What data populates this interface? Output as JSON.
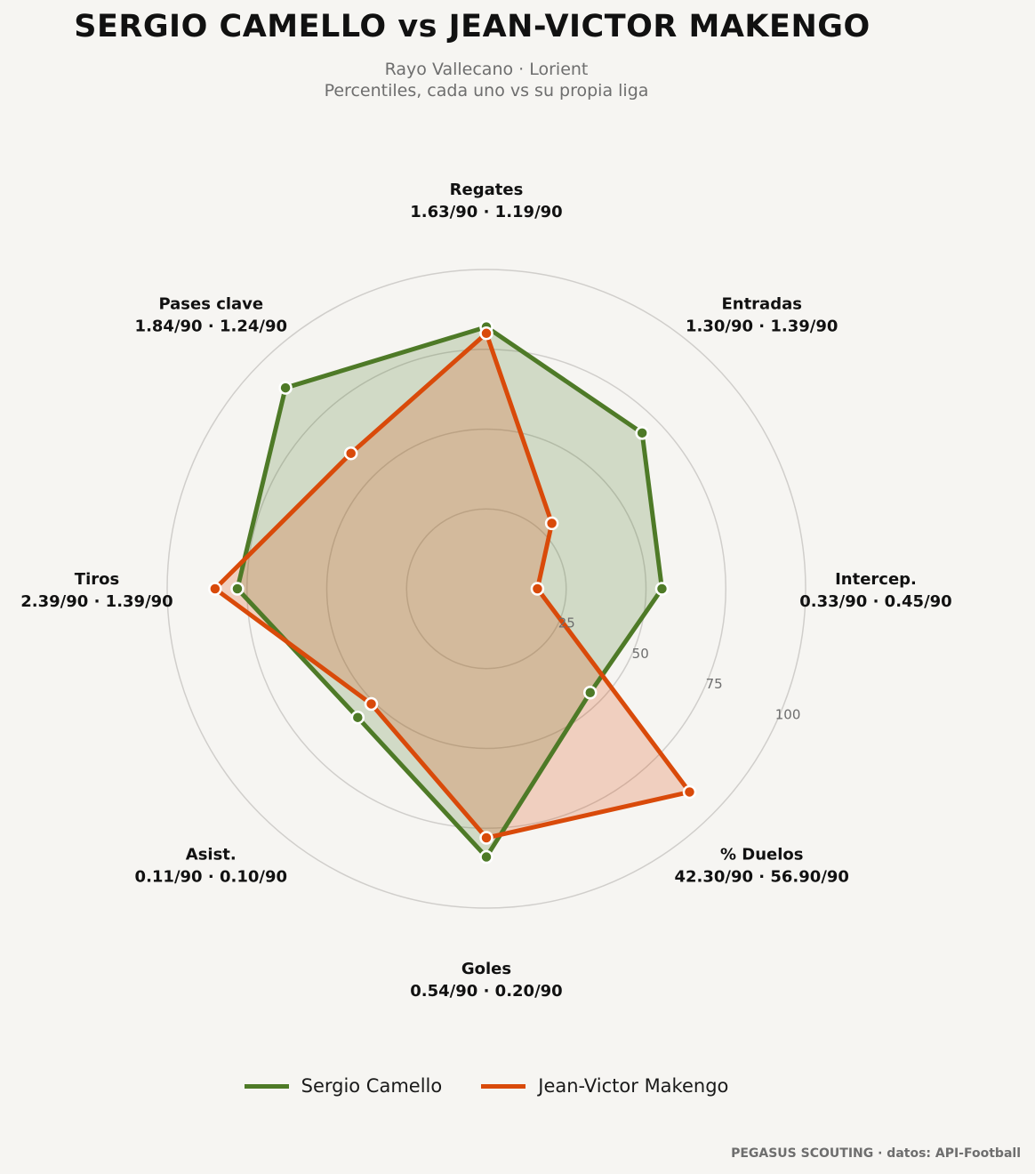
{
  "title": "SERGIO CAMELLO  vs  JEAN-VICTOR MAKENGO",
  "subtitle": {
    "line1": "Rayo Vallecano · Lorient",
    "line2": "Percentiles, cada uno vs su propia liga"
  },
  "footer": "PEGASUS SCOUTING · datos: API-Football",
  "chart_data": {
    "type": "radar",
    "rmax": 100,
    "rings": [
      25,
      50,
      75,
      100
    ],
    "axes": [
      {
        "name": "Regates",
        "values_label": "1.63/90 · 1.19/90"
      },
      {
        "name": "Entradas",
        "values_label": "1.30/90 · 1.39/90"
      },
      {
        "name": "Intercep.",
        "values_label": "0.33/90 · 0.45/90"
      },
      {
        "name": "% Duelos",
        "values_label": "42.30/90 · 56.90/90"
      },
      {
        "name": "Goles",
        "values_label": "0.54/90 · 0.20/90"
      },
      {
        "name": "Asist.",
        "values_label": "0.11/90 · 0.10/90"
      },
      {
        "name": "Tiros",
        "values_label": "2.39/90 · 1.39/90"
      },
      {
        "name": "Pases clave",
        "values_label": "1.84/90 · 1.24/90"
      }
    ],
    "series": [
      {
        "name": "Sergio Camello",
        "color": "#4e7a27",
        "values": [
          82,
          69,
          55,
          46,
          84,
          57,
          78,
          89
        ]
      },
      {
        "name": "Jean-Victor Makengo",
        "color": "#d94a0a",
        "values": [
          80,
          29,
          16,
          90,
          78,
          51,
          85,
          60
        ]
      }
    ]
  }
}
